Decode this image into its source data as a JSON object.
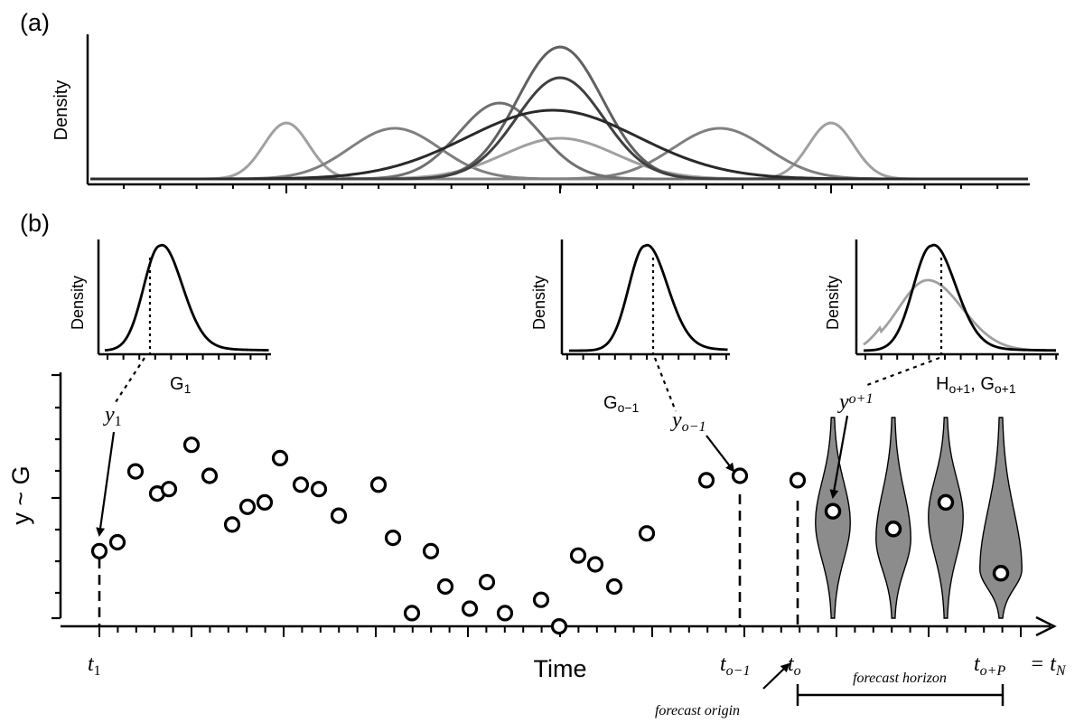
{
  "panel_a": {
    "label": "(a)",
    "ylabel": "Density",
    "colors": [
      "#a0a0a0",
      "#808080",
      "#606060",
      "#404040",
      "#2a2a2a"
    ]
  },
  "panel_b": {
    "label": "(b)",
    "inset1": {
      "ylabel": "Density",
      "xlabel_main": "G",
      "xlabel_sub": "1"
    },
    "inset2": {
      "ylabel": "Density",
      "xlabel_main": "G",
      "xlabel_sub": "o−1"
    },
    "inset3": {
      "ylabel": "Density",
      "xlabel_main1": "H",
      "xlabel_sub1": "o+1",
      "xlabel_sep": ", ",
      "xlabel_main2": "G",
      "xlabel_sub2": "o+1"
    },
    "ylabel": "y ~ G",
    "xlabel": "Time",
    "annot_y1_main": "y",
    "annot_y1_sub": "1",
    "annot_yo1_main": "y",
    "annot_yo1_sub": "o−1",
    "annot_yp1_main": "y",
    "annot_yp1_sub": "o+1",
    "tick_t1_main": "t",
    "tick_t1_sub": "1",
    "tick_to1_main": "t",
    "tick_to1_sub": "o−1",
    "tick_to_main": "t",
    "tick_to_sub": "o",
    "tick_toP_main": "t",
    "tick_toP_sub": "o+P",
    "tick_tN_eq": "= t",
    "tick_tN_sub": "N",
    "forecast_origin": "forecast origin",
    "forecast_horizon": "forecast horizon"
  },
  "chart_data": {
    "type": "scatter",
    "x": [
      1,
      2,
      3,
      4,
      5,
      6,
      7,
      8,
      9,
      10,
      11,
      12,
      13,
      14,
      15,
      16,
      17,
      18,
      19,
      20,
      21,
      22,
      23,
      24,
      25,
      26,
      27,
      28,
      29,
      30,
      31,
      32,
      33,
      34,
      35
    ],
    "y": [
      -1.2,
      -1.0,
      0.6,
      0.1,
      0.2,
      1.2,
      0.5,
      -0.6,
      -0.2,
      -0.1,
      0.9,
      0.3,
      0.2,
      -0.4,
      0.3,
      -0.9,
      -2.6,
      -1.2,
      -2.0,
      -2.5,
      -1.9,
      -2.6,
      -2.3,
      -2.9,
      -1.3,
      -1.5,
      -2.0,
      -0.8,
      0.4,
      0.5,
      0.4,
      -0.3,
      -0.7,
      -0.1,
      -1.7
    ],
    "forecast_points": [
      -0.3,
      -0.7,
      -0.1,
      -1.7
    ]
  }
}
